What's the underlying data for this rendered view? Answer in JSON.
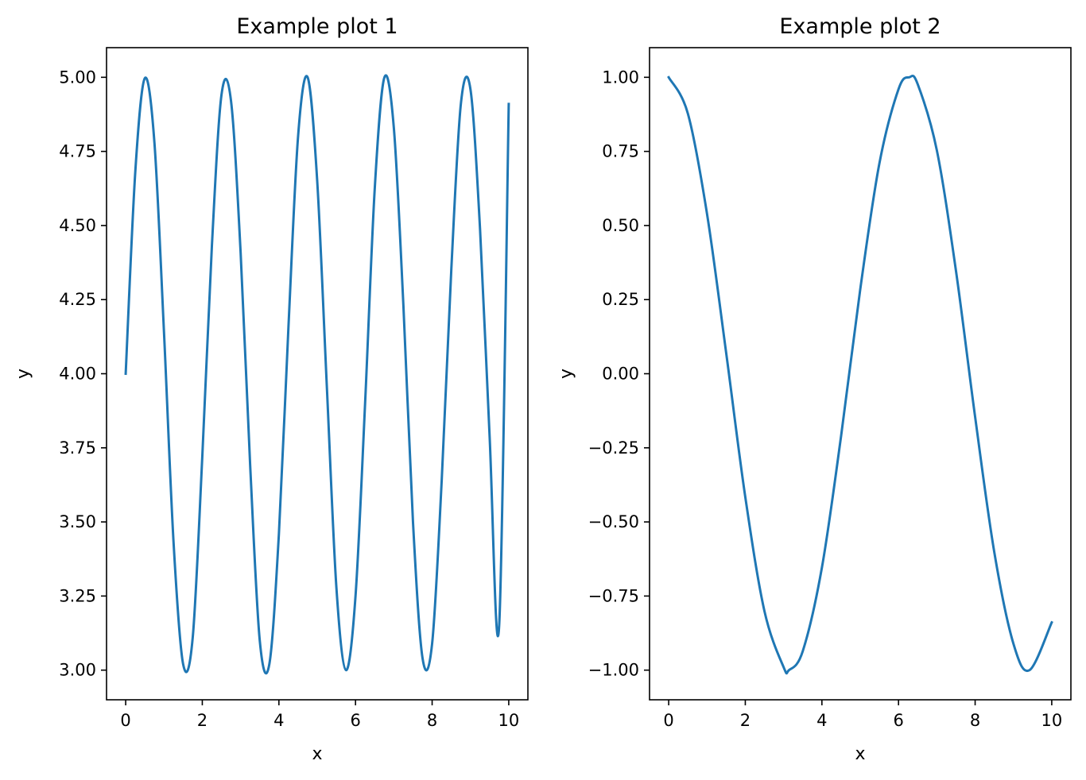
{
  "chart_data": [
    {
      "type": "line",
      "title": "Example plot 1",
      "xlabel": "x",
      "ylabel": "y",
      "xlim": [
        -0.5,
        10.5
      ],
      "ylim": [
        2.9,
        5.1
      ],
      "xticks": [
        0,
        2,
        4,
        6,
        8,
        10
      ],
      "xtick_labels": [
        "0",
        "2",
        "4",
        "6",
        "8",
        "10"
      ],
      "yticks": [
        3.0,
        3.25,
        3.5,
        3.75,
        4.0,
        4.25,
        4.5,
        4.75,
        5.0
      ],
      "ytick_labels": [
        "3.00",
        "3.25",
        "3.50",
        "3.75",
        "4.00",
        "4.25",
        "4.50",
        "4.75",
        "5.00"
      ],
      "grid": false,
      "color": "#1f77b4",
      "series": [
        {
          "x": [
            0,
            0.25,
            0.5,
            0.75,
            1,
            1.25,
            1.5,
            1.75,
            2,
            2.25,
            2.5,
            2.75,
            3,
            3.25,
            3.5,
            3.75,
            4,
            4.25,
            4.5,
            4.75,
            5,
            5.25,
            5.5,
            5.75,
            6,
            6.25,
            6.5,
            6.75,
            7,
            7.25,
            7.5,
            7.75,
            8,
            8.25,
            8.5,
            8.75,
            9,
            9.25,
            9.5,
            9.75,
            10
          ],
          "y": [
            4.0,
            4.68,
            4.997,
            4.78,
            4.14,
            3.43,
            3.02,
            3.11,
            3.72,
            4.43,
            4.94,
            4.92,
            4.41,
            3.69,
            3.1,
            3.02,
            3.46,
            4.16,
            4.8,
            5.0,
            4.65,
            3.96,
            3.28,
            3.0,
            3.25,
            3.9,
            4.62,
            4.998,
            4.83,
            4.23,
            3.5,
            3.04,
            3.09,
            3.64,
            4.35,
            4.91,
            4.96,
            4.49,
            3.79,
            3.15,
            4.91
          ]
        }
      ]
    },
    {
      "type": "line",
      "title": "Example plot 2",
      "xlabel": "x",
      "ylabel": "y",
      "xlim": [
        -0.5,
        10.5
      ],
      "ylim": [
        -1.1,
        1.1
      ],
      "xticks": [
        0,
        2,
        4,
        6,
        8,
        10
      ],
      "xtick_labels": [
        "0",
        "2",
        "4",
        "6",
        "8",
        "10"
      ],
      "yticks": [
        -1.0,
        -0.75,
        -0.5,
        -0.25,
        0.0,
        0.25,
        0.5,
        0.75,
        1.0
      ],
      "ytick_labels": [
        "−1.00",
        "−0.75",
        "−0.50",
        "−0.25",
        "0.00",
        "0.25",
        "0.50",
        "0.75",
        "1.00"
      ],
      "grid": false,
      "color": "#1f77b4",
      "series": [
        {
          "x": [
            0,
            0.5,
            1,
            1.5,
            2,
            2.5,
            3,
            3.14,
            3.5,
            4,
            4.5,
            5,
            5.5,
            6,
            6.28,
            6.5,
            7,
            7.5,
            8,
            8.5,
            9,
            9.42,
            10
          ],
          "y": [
            1.0,
            0.878,
            0.54,
            0.071,
            -0.416,
            -0.801,
            -0.99,
            -1.0,
            -0.936,
            -0.654,
            -0.211,
            0.284,
            0.709,
            0.96,
            1.0,
            0.977,
            0.754,
            0.347,
            -0.146,
            -0.602,
            -0.911,
            -1.0,
            -0.839
          ]
        }
      ]
    }
  ]
}
